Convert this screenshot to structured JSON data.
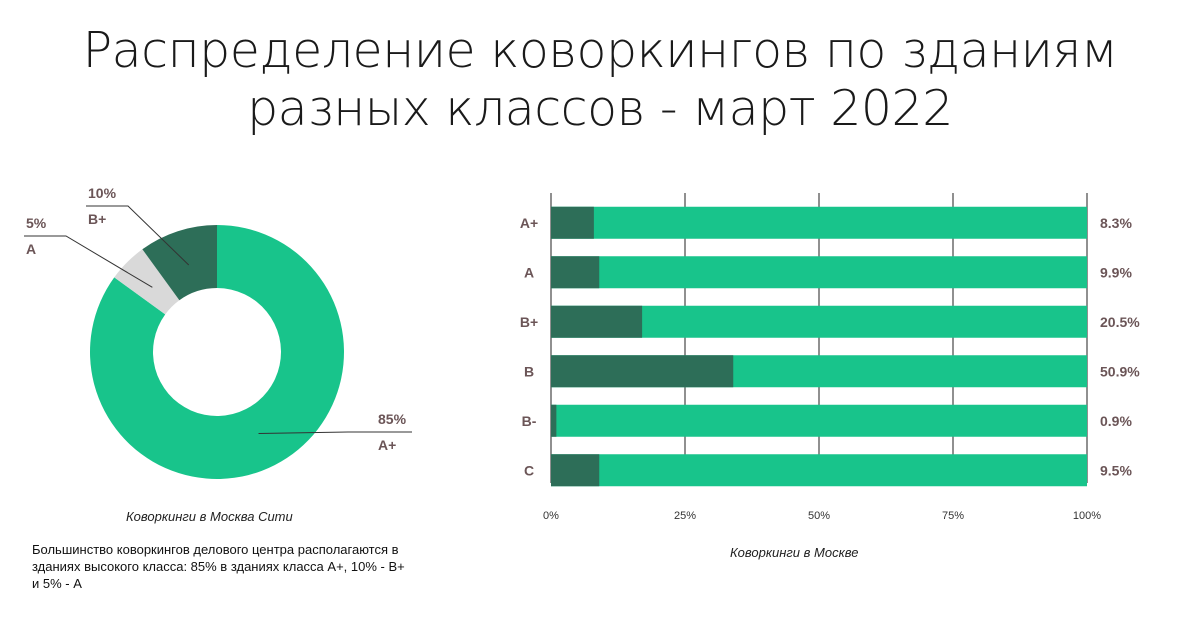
{
  "title_line1": "Распределение коворкингов по зданиям",
  "title_line2": "разных классов - март 2022",
  "donut_caption": "Коворкинги в Москва Сити",
  "note": "Большинство коворкингов делового центра располагаются в зданиях высокого класса: 85% в зданиях класса A+, 10% - B+ и 5% - A",
  "bar_caption": "Коворкинги в Москве",
  "colors": {
    "main": "#18c48b",
    "dark": "#2d6e58",
    "light": "#d9d9d9",
    "label": "#6b5557"
  },
  "chart_data": [
    {
      "type": "pie",
      "donut": true,
      "title": "Коворкинги в Москва Сити",
      "slices": [
        {
          "label": "A+",
          "value": 85,
          "value_label": "85%",
          "color": "#18c48b"
        },
        {
          "label": "A",
          "value": 5,
          "value_label": "5%",
          "color": "#d9d9d9"
        },
        {
          "label": "B+",
          "value": 10,
          "value_label": "10%",
          "color": "#2d6e58"
        }
      ]
    },
    {
      "type": "bar",
      "orientation": "horizontal",
      "stacked": true,
      "title": "Коворкинги в Москве",
      "categories": [
        "A+",
        "A",
        "B+",
        "B",
        "B-",
        "C"
      ],
      "values": [
        8.3,
        9.9,
        20.5,
        50.9,
        0.9,
        9.5
      ],
      "value_labels": [
        "8.3%",
        "9.9%",
        "20.5%",
        "50.9%",
        "0.9%",
        "9.5%"
      ],
      "dark_segment_percent": [
        8,
        9,
        17,
        34,
        1,
        9
      ],
      "xticks": [
        "0%",
        "25%",
        "50%",
        "75%",
        "100%"
      ],
      "xlim": [
        0,
        100
      ],
      "grid": true
    }
  ]
}
